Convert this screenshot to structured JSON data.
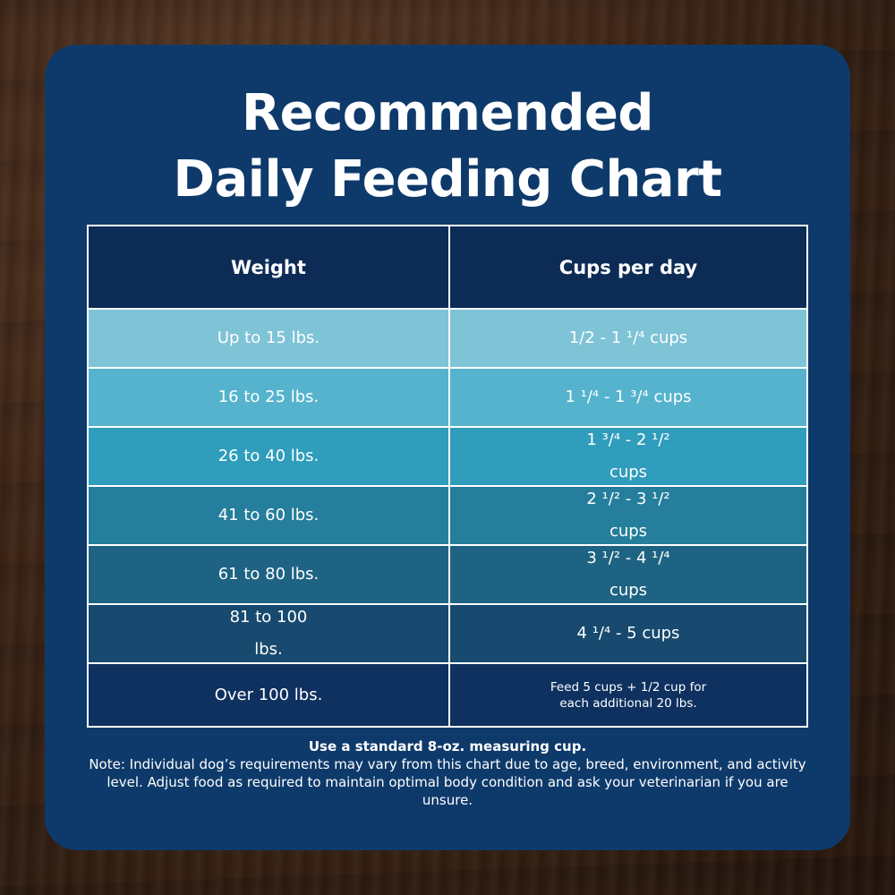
{
  "title_line1": "Recommended",
  "title_line2": "Daily Feeding Chart",
  "table": {
    "headers": [
      "Weight",
      "Cups per day"
    ],
    "rows": [
      {
        "weight": "Up to 15 lbs.",
        "cups": "1/2 - 1 ¹/⁴ cups",
        "color": "#7fc3d7"
      },
      {
        "weight": "16 to 25 lbs.",
        "cups": "1 ¹/⁴ - 1 ³/⁴ cups",
        "color": "#55b3cd"
      },
      {
        "weight": "26 to 40 lbs.",
        "cups": "1 ³/⁴ - 2 ¹/²\ncups",
        "color": "#2f9dbb"
      },
      {
        "weight": "41 to 60 lbs.",
        "cups": "2 ¹/² - 3 ¹/²\ncups",
        "color": "#257e9c"
      },
      {
        "weight": "61 to 80 lbs.",
        "cups": "3 ¹/² - 4 ¹/⁴\ncups",
        "color": "#1e6383"
      },
      {
        "weight": "81 to 100\nlbs.",
        "cups": "4 ¹/⁴ - 5 cups",
        "color": "#174a6e"
      },
      {
        "weight": "Over 100 lbs.",
        "cups": "Feed 5 cups + 1/2 cup for\neach additional 20 lbs.",
        "color": "#0e3160"
      }
    ]
  },
  "footer": {
    "bold_line": "Use a standard 8-oz. measuring cup.",
    "note": "Note: Individual dog’s requirements may vary from this chart due to age, breed, environment, and activity level. Adjust food as required to maintain optimal body condition and ask your veterinarian if you are unsure."
  },
  "colors": {
    "card": "#0e3a6b",
    "header_row": "#0c2c56"
  }
}
